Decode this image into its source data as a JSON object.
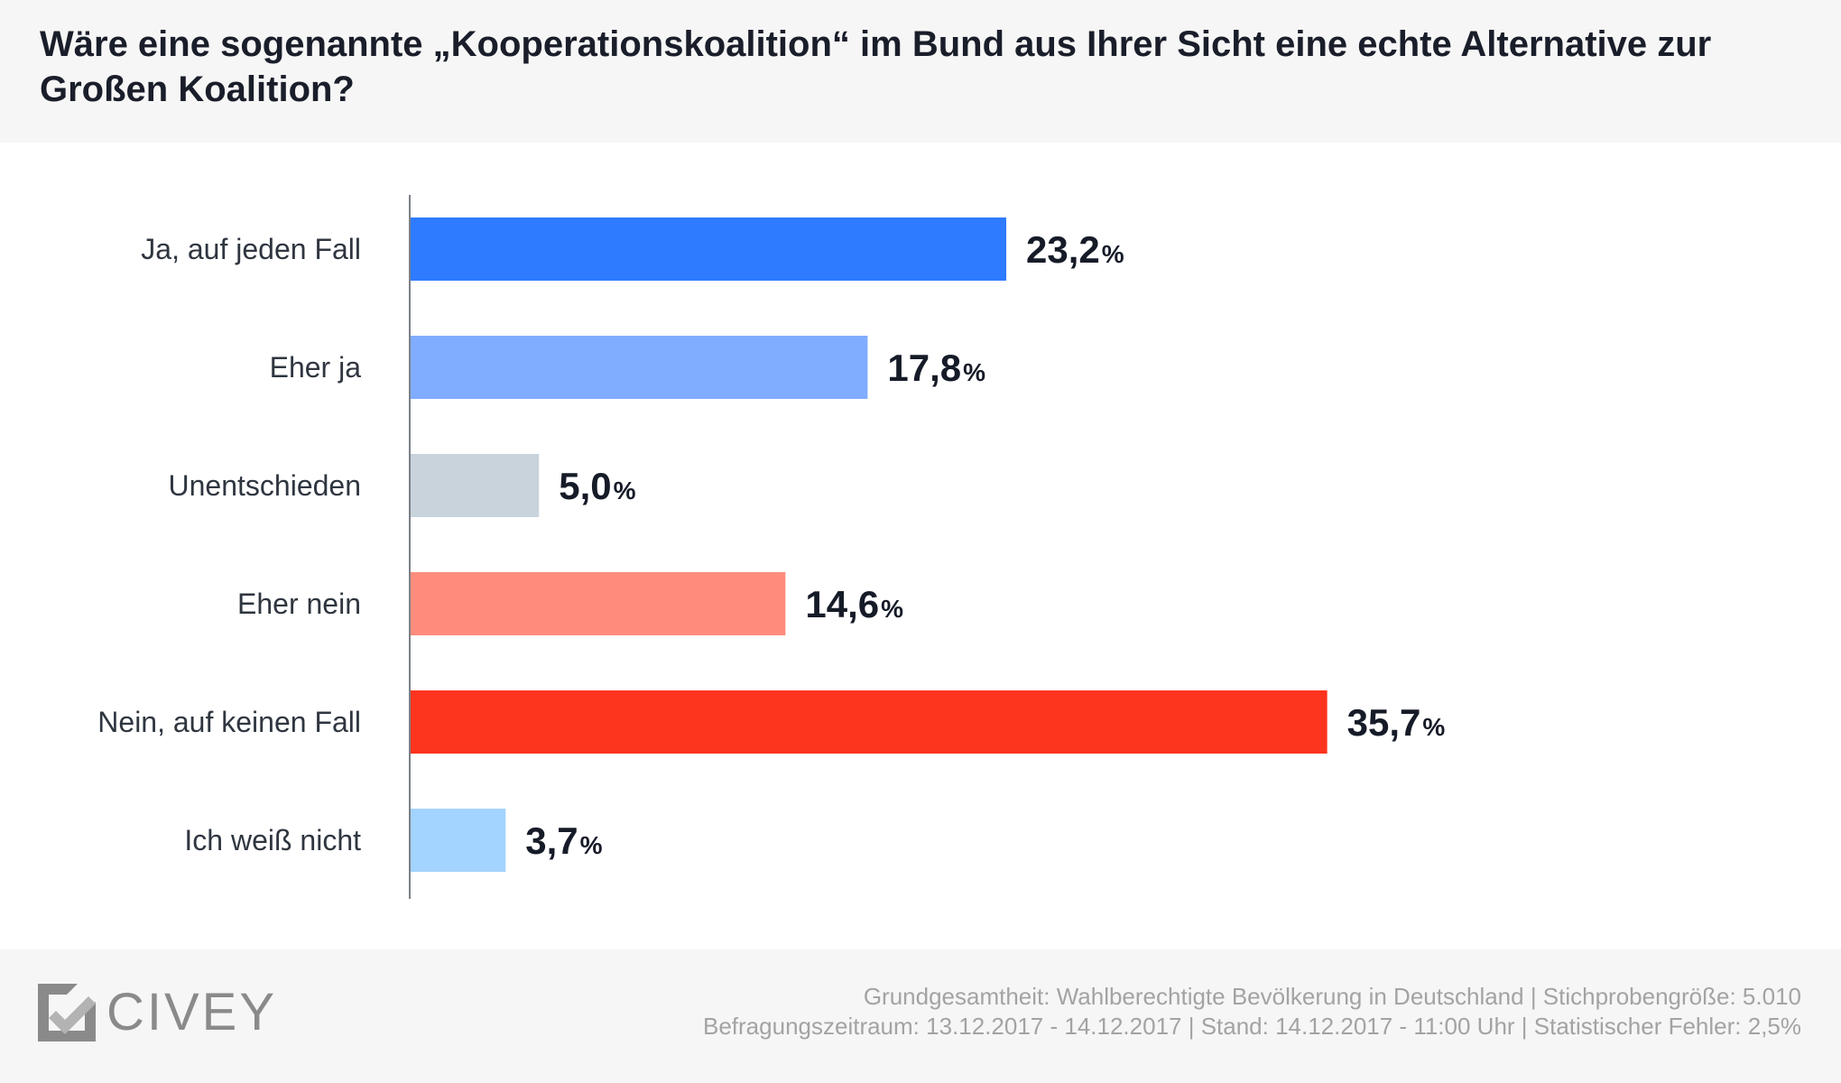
{
  "chart_data": {
    "type": "bar",
    "orientation": "horizontal",
    "title": "Wäre eine sogenannte „Kooperationskoalition“ im Bund aus Ihrer Sicht eine echte Alternative zur Großen Koalition?",
    "categories": [
      "Ja, auf jeden Fall",
      "Eher ja",
      "Unentschieden",
      "Eher nein",
      "Nein, auf keinen Fall",
      "Ich weiß nicht"
    ],
    "values": [
      23.2,
      17.8,
      5.0,
      14.6,
      35.7,
      3.7
    ],
    "value_labels": [
      "23,2",
      "17,8",
      "5,0",
      "14,6",
      "35,7",
      "3,7"
    ],
    "unit": "%",
    "colors": [
      "#2e7bff",
      "#80adff",
      "#c8d3dc",
      "#fe8c7c",
      "#fd341e",
      "#a3d3ff"
    ],
    "xlim": [
      0,
      100
    ],
    "grid": false,
    "legend": "none"
  },
  "footer": {
    "logo_text": "CIVEY",
    "source_line1": "Grundgesamtheit: Wahlberechtigte Bevölkerung in Deutschland | Stichprobengröße: 5.010",
    "source_line2": "Befragungszeitraum: 13.12.2017 - 14.12.2017 | Stand: 14.12.2017 - 11:00 Uhr | Statistischer Fehler: 2,5%"
  },
  "colors": {
    "header_bg": "#f6f6f6",
    "title": "#1a1e2a",
    "axis": "#7b8088",
    "logo": "#8a8a8a",
    "source_text": "#a3a3a3"
  }
}
